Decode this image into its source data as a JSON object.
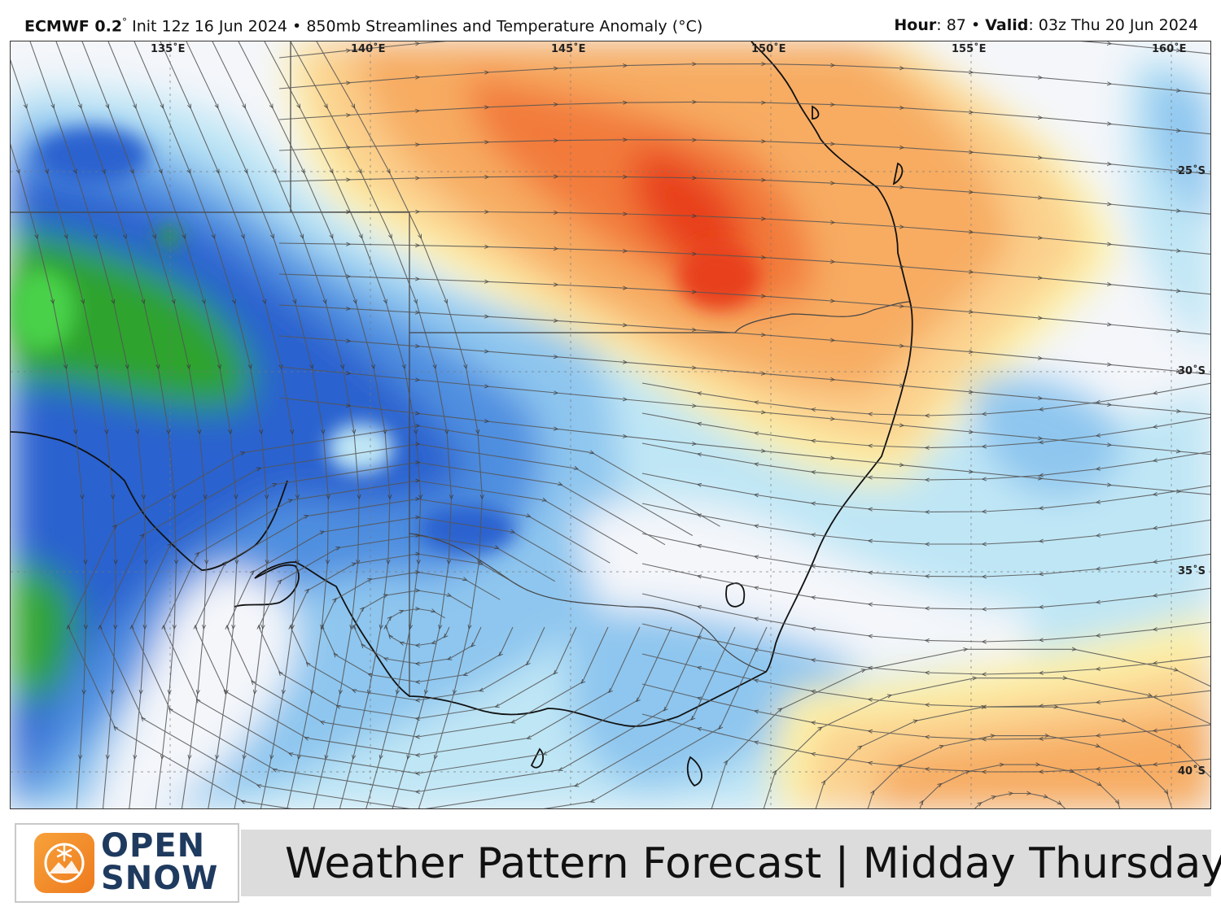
{
  "header": {
    "model": "ECMWF 0.2",
    "model_deg": "°",
    "init": "Init 12z 16 Jun 2024",
    "sep": "•",
    "product": "850mb Streamlines and Temperature Anomaly (°C)",
    "hour_label": "Hour",
    "hour_value": ": 87",
    "valid_label": "Valid",
    "valid_value": ": 03z Thu 20 Jun 2024"
  },
  "map": {
    "lon_labels": [
      "135˚E",
      "140˚E",
      "145˚E",
      "150˚E",
      "155˚E",
      "160˚E"
    ],
    "lat_labels": [
      "25˚S",
      "30˚S",
      "35˚S",
      "40˚S"
    ],
    "colors": {
      "warm_strong": "#e8401c",
      "warm": "#f27a3a",
      "warm_light": "#f7ac62",
      "warm_pale": "#fbd08d",
      "yellow": "#fdf1a8",
      "neutral": "#f4f6fa",
      "cool_pale": "#bfe6f5",
      "cool_light": "#8ec6ef",
      "cool": "#4f8fe0",
      "cool_strong": "#2b62cf",
      "green": "#2ea32e",
      "green_light": "#48d148"
    },
    "icon": "streamline-arrows"
  },
  "footer": {
    "logo_line1": "OPEN",
    "logo_line2": "SNOW",
    "logo_icon": "snowflake-mountain-icon",
    "title": "Weather Pattern Forecast | Midday Thursday"
  }
}
